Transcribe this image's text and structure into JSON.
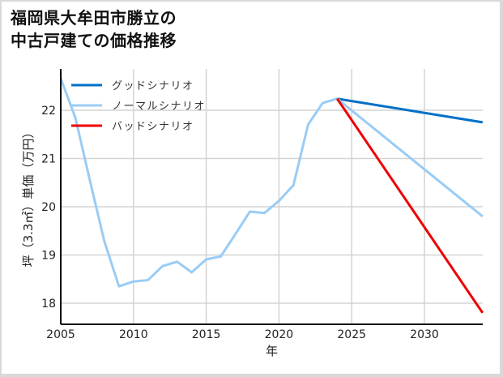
{
  "title_line1": "福岡県大牟田市勝立の",
  "title_line2": "中古戸建ての価格推移",
  "chart_data": {
    "type": "line",
    "title": "福岡県大牟田市勝立の中古戸建ての価格推移",
    "xlabel": "年",
    "ylabel": "坪（3.3㎡）単価（万円）",
    "xlim": [
      2005,
      2034
    ],
    "ylim": [
      17.6,
      23.0
    ],
    "xticks": [
      2005,
      2010,
      2015,
      2020,
      2025,
      2030
    ],
    "yticks": [
      18,
      19,
      20,
      21,
      22
    ],
    "grid": true,
    "legend_position": "upper left",
    "series": [
      {
        "name": "グッドシナリオ",
        "color": "#0070c8",
        "x": [
          2024,
          2034
        ],
        "values": [
          22.24,
          21.75
        ]
      },
      {
        "name": "ノーマルシナリオ",
        "color": "#99ccf5",
        "x": [
          2005,
          2006,
          2007,
          2008,
          2009,
          2010,
          2011,
          2012,
          2013,
          2014,
          2015,
          2016,
          2017,
          2018,
          2019,
          2020,
          2021,
          2022,
          2023,
          2024,
          2034
        ],
        "values": [
          22.66,
          21.85,
          20.55,
          19.28,
          18.35,
          18.45,
          18.48,
          18.77,
          18.86,
          18.64,
          18.91,
          18.97,
          19.43,
          19.9,
          19.87,
          20.12,
          20.45,
          21.7,
          22.15,
          22.24,
          19.8
        ]
      },
      {
        "name": "バッドシナリオ",
        "color": "#ee0000",
        "x": [
          2024,
          2034
        ],
        "values": [
          22.24,
          17.8
        ]
      }
    ]
  }
}
